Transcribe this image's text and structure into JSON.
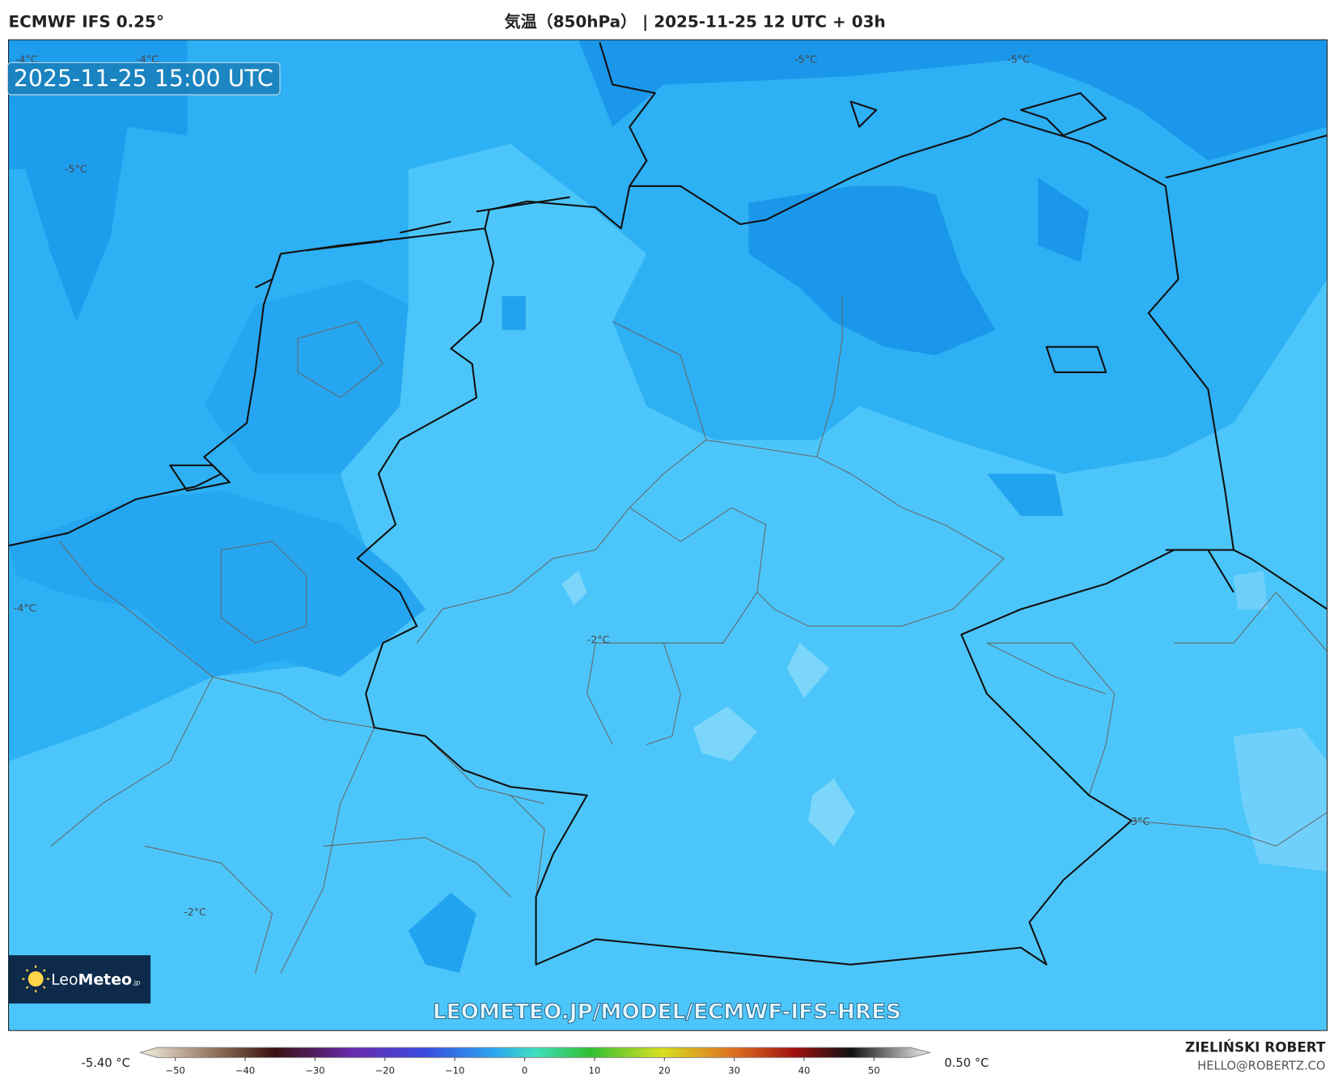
{
  "header": {
    "model": "ECMWF IFS 0.25°",
    "title": "気温（850hPa） | 2025-11-25 12 UTC + 03h"
  },
  "map": {
    "valid_time": "2025-11-25 15:00 UTC",
    "contour_labels": [
      "-4°C",
      "-4°C",
      "-5°C",
      "-5°C",
      "-5°C",
      "-4°C",
      "-2°C",
      "-3°C",
      "-2°C"
    ],
    "logo": {
      "name": "Leo",
      "name_bold": "Meteo",
      "suffix": ".jp"
    },
    "watermark": "LEOMETEO.JP/MODEL/ECMWF-IFS-HRES"
  },
  "colorbar": {
    "min_label": "-5.40 °C",
    "max_label": "0.50 °C",
    "xlim": [
      -55,
      58
    ],
    "xticks": [
      {
        "value": -50,
        "label": "−50"
      },
      {
        "value": -40,
        "label": "−40"
      },
      {
        "value": -30,
        "label": "−30"
      },
      {
        "value": -20,
        "label": "−20"
      },
      {
        "value": -10,
        "label": "−10"
      },
      0,
      10,
      20,
      30,
      40,
      50
    ]
  },
  "footer": {
    "author": "ZIELIŃSKI ROBERT",
    "contact": "HELLO@ROBERTZ.CO"
  }
}
